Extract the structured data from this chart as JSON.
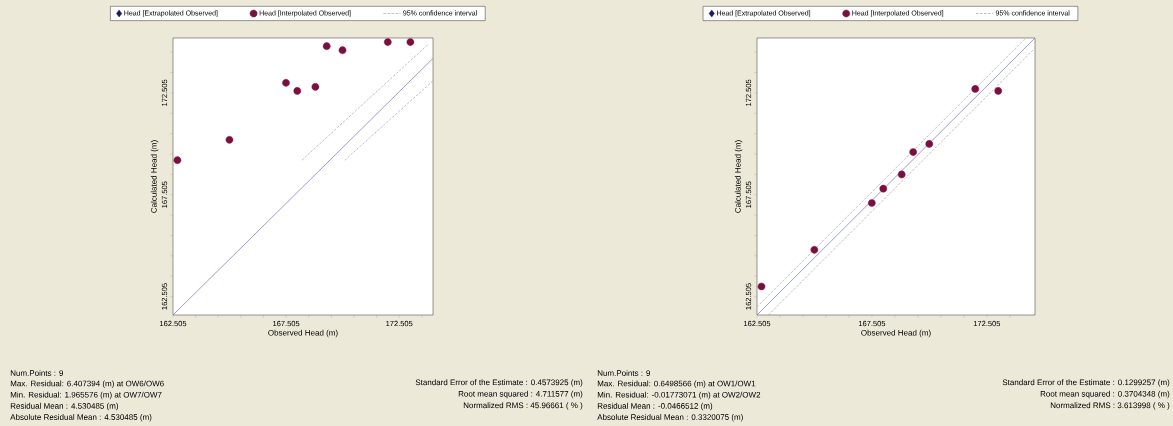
{
  "chart_data": [
    {
      "type": "scatter",
      "xlabel": "Observed Head (m)",
      "ylabel": "Calculated Head (m)",
      "legend": "top",
      "grid": false,
      "xlim": [
        162.505,
        174.0
      ],
      "ylim": [
        161.6,
        175.2
      ],
      "xticks": [
        162.505,
        {
          "value": 163.505,
          "label": null
        },
        {
          "value": 164.505,
          "label": null
        },
        {
          "value": 165.505,
          "label": null
        },
        {
          "value": 166.505,
          "label": null
        },
        167.505,
        {
          "value": 168.505,
          "label": null
        },
        {
          "value": 169.505,
          "label": null
        },
        {
          "value": 170.505,
          "label": null
        },
        {
          "value": 171.505,
          "label": null
        },
        172.505,
        {
          "value": 173.505,
          "label": null
        }
      ],
      "yticks": [
        162.505,
        {
          "value": 163.505,
          "label": null
        },
        {
          "value": 164.505,
          "label": null
        },
        {
          "value": 165.505,
          "label": null
        },
        {
          "value": 166.505,
          "label": null
        },
        167.505,
        {
          "value": 168.505,
          "label": null
        },
        {
          "value": 169.505,
          "label": null
        },
        {
          "value": 170.505,
          "label": null
        },
        {
          "value": 171.505,
          "label": null
        },
        172.505,
        {
          "value": 173.505,
          "label": null
        },
        {
          "value": 174.505,
          "label": null
        }
      ],
      "series": [
        {
          "name": "Head [Extrapolated Observed]",
          "type": "scatter",
          "marker": "diamond",
          "color": "#1a1a5e"
        },
        {
          "name": "Head [Interpolated Observed]",
          "type": "scatter",
          "marker": "circle",
          "color": "#7b1040",
          "x": [
            162.7,
            165.0,
            167.5,
            168.0,
            168.8,
            169.3,
            170.0,
            172.0,
            173.0
          ],
          "values": [
            169.2,
            170.2,
            173.0,
            172.6,
            172.8,
            174.8,
            174.6,
            175.0,
            175.0
          ]
        },
        {
          "type": "line",
          "color": "#8080e0",
          "line_style": "solid",
          "x": [
            162.505,
            174.0
          ],
          "values": [
            161.6,
            174.2
          ]
        },
        {
          "name": "95% confidence interval",
          "type": "line",
          "line_style": "dashed",
          "color": "#b0b0b0",
          "x": [
            168.2,
            173.8
          ],
          "values": [
            169.2,
            174.9
          ]
        },
        {
          "type": "line",
          "line_style": "dashed",
          "color": "#b0b0b0",
          "x": [
            170.1,
            174.0
          ],
          "values": [
            169.2,
            173.1
          ]
        }
      ],
      "annotations": [
        "Num.Points : 9",
        "Max. Residual: 6.407394 (m) at OW6/OW6",
        "Min. Residual: 1.965576 (m) at OW7/OW7",
        "Residual Mean : 4.530485 (m)",
        "Absolute Residual Mean : 4.530485 (m)",
        "Standard Error of the Estimate : 0.4573925 (m)",
        "Root mean squared : 4.711577 (m)",
        "Normalized RMS : 45.96661 ( % )"
      ]
    },
    {
      "type": "scatter",
      "xlabel": "Observed Head (m)",
      "ylabel": "Calculated Head (m)",
      "legend": "top",
      "grid": false,
      "xlim": [
        162.505,
        174.6
      ],
      "ylim": [
        161.6,
        175.2
      ],
      "xticks": [
        162.505,
        {
          "value": 163.505,
          "label": null
        },
        {
          "value": 164.505,
          "label": null
        },
        {
          "value": 165.505,
          "label": null
        },
        {
          "value": 166.505,
          "label": null
        },
        167.505,
        {
          "value": 168.505,
          "label": null
        },
        {
          "value": 169.505,
          "label": null
        },
        {
          "value": 170.505,
          "label": null
        },
        {
          "value": 171.505,
          "label": null
        },
        172.505,
        {
          "value": 173.505,
          "label": null
        }
      ],
      "yticks": [
        162.505,
        {
          "value": 163.505,
          "label": null
        },
        {
          "value": 164.505,
          "label": null
        },
        {
          "value": 165.505,
          "label": null
        },
        {
          "value": 166.505,
          "label": null
        },
        167.505,
        {
          "value": 168.505,
          "label": null
        },
        {
          "value": 169.505,
          "label": null
        },
        {
          "value": 170.505,
          "label": null
        },
        {
          "value": 171.505,
          "label": null
        },
        172.505,
        {
          "value": 173.505,
          "label": null
        },
        {
          "value": 174.505,
          "label": null
        }
      ],
      "series": [
        {
          "name": "Head [Extrapolated Observed]",
          "type": "scatter",
          "marker": "diamond",
          "color": "#1a1a5e"
        },
        {
          "name": "Head [Interpolated Observed]",
          "type": "scatter",
          "marker": "circle",
          "color": "#7b1040",
          "x": [
            162.7,
            165.0,
            167.5,
            168.0,
            168.8,
            169.3,
            170.0,
            172.0,
            173.0
          ],
          "values": [
            163.0,
            164.8,
            167.1,
            167.8,
            168.5,
            169.6,
            170.0,
            172.7,
            172.6
          ]
        },
        {
          "type": "line",
          "color": "#8080e0",
          "line_style": "solid",
          "x": [
            162.505,
            174.6
          ],
          "values": [
            161.6,
            175.2
          ]
        },
        {
          "name": "95% confidence interval",
          "type": "line",
          "line_style": "dashed",
          "color": "#b0b0b0",
          "x": [
            162.505,
            174.2
          ],
          "values": [
            162.0,
            175.2
          ]
        },
        {
          "type": "line",
          "line_style": "dashed",
          "color": "#b0b0b0",
          "x": [
            163.0,
            174.6
          ],
          "values": [
            161.6,
            174.7
          ]
        }
      ],
      "annotations": [
        "Num.Points : 9",
        "Max. Residual: 0.6498566 (m) at OW1/OW1",
        "Min. Residual: -0.01773071 (m) at OW2/OW2",
        "Residual Mean : -0.0466512 (m)",
        "Absolute Residual Mean : 0.3320075 (m)",
        "Standard Error of the Estimate : 0.1299257 (m)",
        "Root mean squared : 0.3704348 (m)",
        "Normalized RMS : 3.613998 ( % )"
      ]
    }
  ]
}
